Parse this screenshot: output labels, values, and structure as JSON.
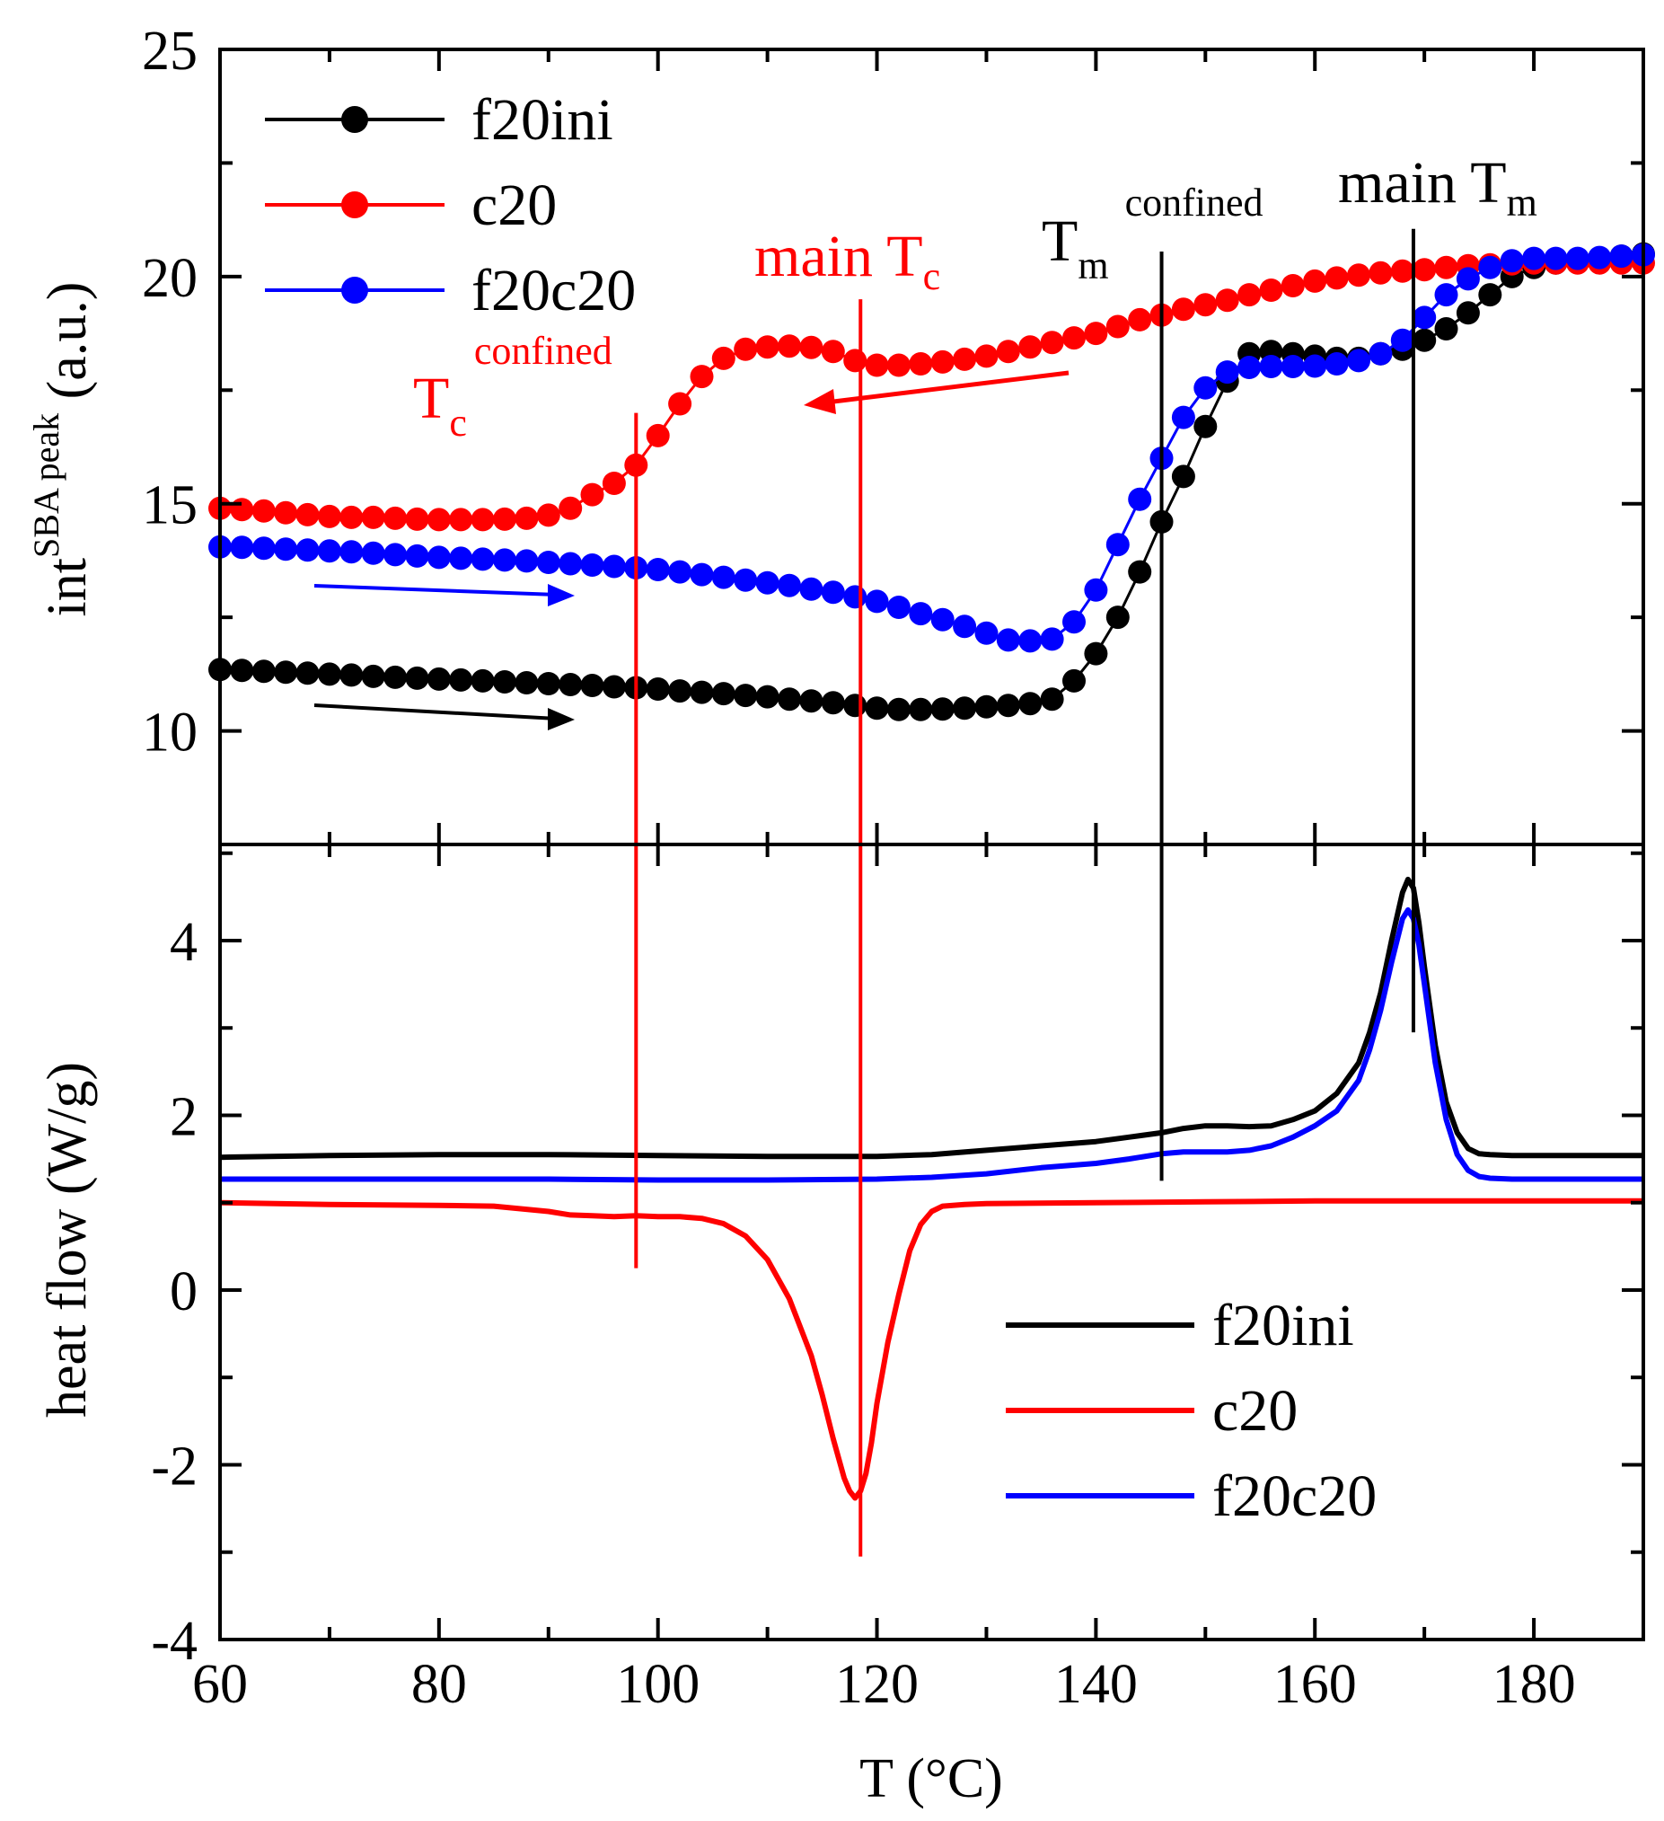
{
  "colors": {
    "black": "#000000",
    "red": "#ff0000",
    "blue": "#0000ff"
  },
  "chart_data": [
    {
      "panel": "top",
      "type": "scatter",
      "ylabel_main": "int",
      "ylabel_sup": "SBA peak",
      "ylabel_tail": " (a.u.)",
      "xlim": [
        60,
        190
      ],
      "ylim": [
        7.5,
        25
      ],
      "yticks": [
        10,
        15,
        20,
        25
      ],
      "ytick_labels": [
        "10",
        "15",
        "20",
        "25"
      ],
      "legend": {
        "placement": "top-left",
        "entries": [
          "f20ini",
          "c20",
          "f20c20"
        ]
      },
      "series": [
        {
          "name": "f20ini",
          "color": "#000000",
          "x": [
            60,
            62,
            64,
            66,
            68,
            70,
            72,
            74,
            76,
            78,
            80,
            82,
            84,
            86,
            88,
            90,
            92,
            94,
            96,
            98,
            100,
            102,
            104,
            106,
            108,
            110,
            112,
            114,
            116,
            118,
            120,
            122,
            124,
            126,
            128,
            130,
            132,
            134,
            136,
            138,
            140,
            142,
            144,
            146,
            148,
            150,
            152,
            154,
            156,
            158,
            160,
            162,
            164,
            166,
            168,
            170,
            172,
            174,
            176,
            178,
            180,
            182,
            184,
            186,
            188,
            190
          ],
          "y": [
            11.35,
            11.33,
            11.31,
            11.29,
            11.27,
            11.25,
            11.23,
            11.2,
            11.18,
            11.16,
            11.14,
            11.12,
            11.1,
            11.08,
            11.06,
            11.04,
            11.02,
            11.0,
            10.97,
            10.95,
            10.92,
            10.88,
            10.85,
            10.82,
            10.78,
            10.75,
            10.7,
            10.66,
            10.62,
            10.56,
            10.5,
            10.47,
            10.47,
            10.48,
            10.5,
            10.53,
            10.56,
            10.6,
            10.7,
            11.1,
            11.7,
            12.5,
            13.5,
            14.6,
            15.6,
            16.7,
            17.7,
            18.3,
            18.35,
            18.3,
            18.25,
            18.2,
            18.2,
            18.3,
            18.4,
            18.6,
            18.85,
            19.2,
            19.6,
            20.0,
            20.2,
            20.3,
            20.35,
            20.4,
            20.45,
            20.5
          ]
        },
        {
          "name": "c20",
          "color": "#ff0000",
          "x": [
            60,
            62,
            64,
            66,
            68,
            70,
            72,
            74,
            76,
            78,
            80,
            82,
            84,
            86,
            88,
            90,
            92,
            94,
            96,
            98,
            100,
            102,
            104,
            106,
            108,
            110,
            112,
            114,
            116,
            118,
            120,
            122,
            124,
            126,
            128,
            130,
            132,
            134,
            136,
            138,
            140,
            142,
            144,
            146,
            148,
            150,
            152,
            154,
            156,
            158,
            160,
            162,
            164,
            166,
            168,
            170,
            172,
            174,
            176,
            178,
            180,
            182,
            184,
            186,
            188,
            190
          ],
          "y": [
            14.9,
            14.87,
            14.84,
            14.8,
            14.76,
            14.72,
            14.7,
            14.7,
            14.68,
            14.66,
            14.65,
            14.65,
            14.65,
            14.66,
            14.68,
            14.75,
            14.9,
            15.2,
            15.45,
            15.85,
            16.5,
            17.2,
            17.8,
            18.2,
            18.4,
            18.45,
            18.47,
            18.44,
            18.35,
            18.15,
            18.05,
            18.05,
            18.08,
            18.12,
            18.18,
            18.25,
            18.35,
            18.45,
            18.55,
            18.65,
            18.75,
            18.9,
            19.05,
            19.15,
            19.28,
            19.38,
            19.48,
            19.6,
            19.7,
            19.8,
            19.9,
            19.97,
            20.03,
            20.08,
            20.12,
            20.15,
            20.2,
            20.24,
            20.26,
            20.28,
            20.3,
            20.3,
            20.3,
            20.3,
            20.3,
            20.3
          ]
        },
        {
          "name": "f20c20",
          "color": "#0000ff",
          "x": [
            60,
            62,
            64,
            66,
            68,
            70,
            72,
            74,
            76,
            78,
            80,
            82,
            84,
            86,
            88,
            90,
            92,
            94,
            96,
            98,
            100,
            102,
            104,
            106,
            108,
            110,
            112,
            114,
            116,
            118,
            120,
            122,
            124,
            126,
            128,
            130,
            132,
            134,
            136,
            138,
            140,
            142,
            144,
            146,
            148,
            150,
            152,
            154,
            156,
            158,
            160,
            162,
            164,
            166,
            168,
            170,
            172,
            174,
            176,
            178,
            180,
            182,
            184,
            186,
            188,
            190
          ],
          "y": [
            14.05,
            14.04,
            14.02,
            14.0,
            13.98,
            13.96,
            13.94,
            13.91,
            13.88,
            13.85,
            13.82,
            13.8,
            13.78,
            13.76,
            13.74,
            13.71,
            13.68,
            13.65,
            13.62,
            13.59,
            13.55,
            13.5,
            13.44,
            13.38,
            13.32,
            13.26,
            13.2,
            13.12,
            13.05,
            12.95,
            12.85,
            12.72,
            12.58,
            12.45,
            12.3,
            12.15,
            12.0,
            11.98,
            12.02,
            12.4,
            13.1,
            14.1,
            15.1,
            16.0,
            16.9,
            17.55,
            17.9,
            18.0,
            18.02,
            18.02,
            18.03,
            18.08,
            18.15,
            18.3,
            18.6,
            19.1,
            19.6,
            19.95,
            20.2,
            20.35,
            20.4,
            20.4,
            20.4,
            20.42,
            20.45,
            20.48
          ]
        }
      ]
    },
    {
      "panel": "bottom",
      "type": "line",
      "ylabel": "heat flow (W/g)",
      "xlabel": "T (°C)",
      "xlim": [
        60,
        190
      ],
      "ylim": [
        -4,
        5.1
      ],
      "yticks": [
        -4,
        -2,
        0,
        2,
        4
      ],
      "ytick_labels": [
        "-4",
        "-2",
        "0",
        "2",
        "4"
      ],
      "xticks": [
        60,
        80,
        100,
        120,
        140,
        160,
        180
      ],
      "xtick_labels": [
        "60",
        "80",
        "100",
        "120",
        "140",
        "160",
        "180"
      ],
      "legend": {
        "placement": "bottom-right",
        "entries": [
          "f20ini",
          "c20",
          "f20c20"
        ]
      },
      "series": [
        {
          "name": "f20ini",
          "color": "#000000",
          "x": [
            60,
            70,
            80,
            90,
            100,
            110,
            120,
            125,
            130,
            135,
            140,
            143,
            146,
            148,
            150,
            152,
            154,
            156,
            158,
            160,
            162,
            164,
            165,
            166,
            167,
            168,
            168.5,
            169,
            169.5,
            170,
            171,
            172,
            173,
            174,
            175,
            176,
            178,
            180,
            185,
            190
          ],
          "y": [
            1.52,
            1.54,
            1.55,
            1.55,
            1.54,
            1.53,
            1.53,
            1.55,
            1.6,
            1.65,
            1.7,
            1.75,
            1.8,
            1.85,
            1.88,
            1.88,
            1.87,
            1.88,
            1.95,
            2.05,
            2.25,
            2.6,
            2.95,
            3.4,
            4.0,
            4.55,
            4.7,
            4.6,
            4.2,
            3.7,
            2.8,
            2.15,
            1.8,
            1.62,
            1.56,
            1.55,
            1.54,
            1.54,
            1.54,
            1.54
          ]
        },
        {
          "name": "c20",
          "color": "#ff0000",
          "x": [
            60,
            70,
            80,
            85,
            90,
            92,
            94,
            96,
            98,
            100,
            102,
            104,
            106,
            108,
            110,
            112,
            114,
            115,
            116,
            117,
            117.5,
            118,
            118.5,
            119,
            119.5,
            120,
            121,
            122,
            123,
            124,
            125,
            126,
            128,
            130,
            140,
            150,
            160,
            170,
            180,
            190
          ],
          "y": [
            1.0,
            0.98,
            0.97,
            0.96,
            0.9,
            0.86,
            0.85,
            0.84,
            0.85,
            0.84,
            0.84,
            0.82,
            0.76,
            0.62,
            0.35,
            -0.1,
            -0.75,
            -1.2,
            -1.7,
            -2.15,
            -2.3,
            -2.38,
            -2.3,
            -2.1,
            -1.75,
            -1.3,
            -0.6,
            -0.05,
            0.45,
            0.75,
            0.9,
            0.96,
            0.98,
            0.99,
            1.0,
            1.01,
            1.02,
            1.02,
            1.02,
            1.02
          ]
        },
        {
          "name": "f20c20",
          "color": "#0000ff",
          "x": [
            60,
            70,
            80,
            90,
            100,
            110,
            120,
            125,
            130,
            135,
            140,
            143,
            146,
            148,
            150,
            152,
            154,
            156,
            158,
            160,
            162,
            164,
            165,
            166,
            167,
            168,
            168.5,
            169,
            169.5,
            170,
            171,
            172,
            173,
            174,
            175,
            176,
            178,
            180,
            185,
            190
          ],
          "y": [
            1.27,
            1.27,
            1.27,
            1.27,
            1.26,
            1.26,
            1.27,
            1.29,
            1.33,
            1.4,
            1.45,
            1.5,
            1.56,
            1.58,
            1.58,
            1.58,
            1.6,
            1.65,
            1.75,
            1.88,
            2.05,
            2.4,
            2.75,
            3.2,
            3.75,
            4.25,
            4.35,
            4.25,
            3.95,
            3.5,
            2.6,
            1.95,
            1.55,
            1.37,
            1.3,
            1.28,
            1.27,
            1.27,
            1.27,
            1.27
          ]
        }
      ]
    }
  ],
  "annotations": {
    "tc_confined": {
      "main": "T",
      "sub": "c",
      "sup": "confined",
      "x": 98,
      "color": "#ff0000"
    },
    "main_tc": {
      "main": "main T",
      "sub": "c",
      "x": 118.5,
      "color": "#ff0000"
    },
    "tm_confined": {
      "main": "T",
      "sub": "m",
      "sup": "confined",
      "x": 146,
      "color": "#000000"
    },
    "main_tm": {
      "main": "main T",
      "sub": "m",
      "x": 169,
      "color": "#000000"
    }
  }
}
